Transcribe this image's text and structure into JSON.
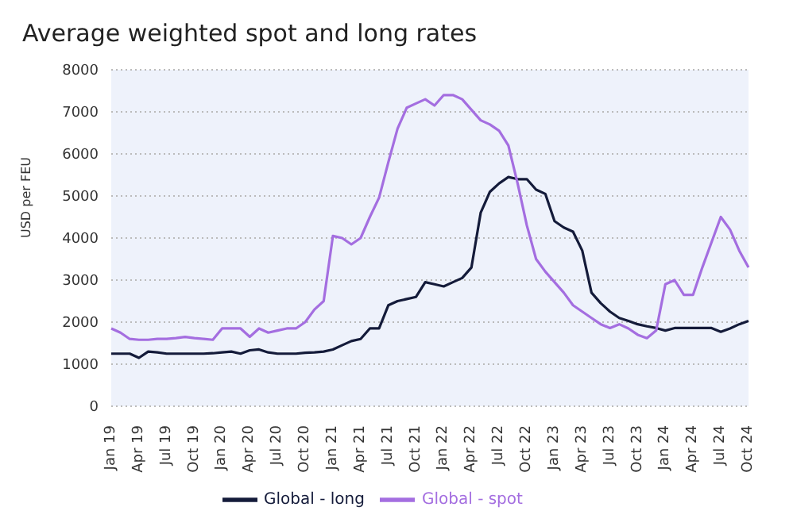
{
  "chart_data": {
    "type": "line",
    "title": "Average weighted spot and long rates",
    "ylabel": "USD per FEU",
    "categories": [
      "Jan 19",
      null,
      null,
      "Apr 19",
      null,
      null,
      "Jul 19",
      null,
      null,
      "Oct 19",
      null,
      null,
      "Jan 20",
      null,
      null,
      "Apr 20",
      null,
      null,
      "Jul 20",
      null,
      null,
      "Oct 20",
      null,
      null,
      "Jan 21",
      null,
      null,
      "Apr 21",
      null,
      null,
      "Jul 21",
      null,
      null,
      "Oct 21",
      null,
      null,
      "Jan 22",
      null,
      null,
      "Apr 22",
      null,
      null,
      "Jul 22",
      null,
      null,
      "Oct 22",
      null,
      null,
      "Jan 23",
      null,
      null,
      "Apr 23",
      null,
      null,
      "Jul 23",
      null,
      null,
      "Oct 23",
      null,
      null,
      "Jan 24",
      null,
      null,
      "Apr 24",
      null,
      null,
      "Jul 24",
      null,
      null,
      "Oct 24"
    ],
    "series": [
      {
        "name": "Global - long",
        "color": "#141b3a",
        "values": [
          1250,
          1250,
          1250,
          1150,
          1300,
          1280,
          1250,
          1250,
          1250,
          1250,
          1250,
          1260,
          1280,
          1300,
          1250,
          1330,
          1350,
          1280,
          1250,
          1250,
          1250,
          1270,
          1280,
          1300,
          1350,
          1450,
          1550,
          1600,
          1850,
          1850,
          2400,
          2500,
          2550,
          2600,
          2950,
          2900,
          2850,
          2950,
          3050,
          3300,
          4600,
          5100,
          5300,
          5450,
          5400,
          5400,
          5150,
          5050,
          4400,
          4250,
          4150,
          3700,
          2700,
          2450,
          2250,
          2100,
          2030,
          1950,
          1900,
          1860,
          1800,
          1860,
          1860,
          1860,
          1860,
          1860,
          1770,
          1850,
          1950,
          2030
        ]
      },
      {
        "name": "Global - spot",
        "color": "#a46ee0",
        "values": [
          1850,
          1750,
          1600,
          1580,
          1580,
          1600,
          1600,
          1620,
          1650,
          1620,
          1600,
          1580,
          1850,
          1850,
          1850,
          1650,
          1850,
          1750,
          1800,
          1850,
          1850,
          2000,
          2300,
          2500,
          4050,
          4000,
          3850,
          4000,
          4500,
          4960,
          5800,
          6600,
          7100,
          7200,
          7300,
          7150,
          7400,
          7400,
          7300,
          7050,
          6800,
          6700,
          6550,
          6200,
          5300,
          4300,
          3500,
          3200,
          2950,
          2700,
          2400,
          2250,
          2100,
          1950,
          1860,
          1950,
          1850,
          1700,
          1620,
          1800,
          2900,
          3000,
          2650,
          2650,
          3300,
          3900,
          4500,
          4200,
          3700,
          3300
        ]
      }
    ],
    "ylim": [
      0,
      8000
    ],
    "yticks": [
      0,
      1000,
      2000,
      3000,
      4000,
      5000,
      6000,
      7000,
      8000
    ],
    "grid": "y",
    "legend": "bottom",
    "marker": "none",
    "line_style": "solid"
  }
}
